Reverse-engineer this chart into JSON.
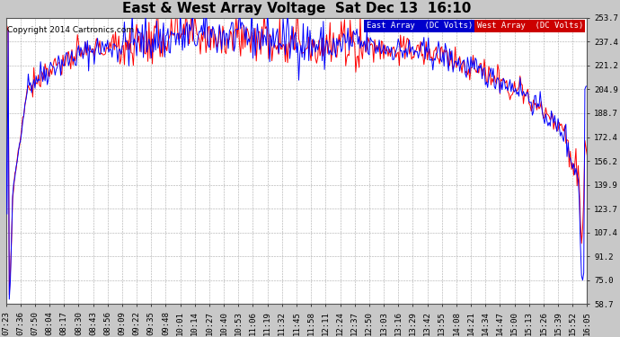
{
  "title": "East & West Array Voltage  Sat Dec 13  16:10",
  "copyright": "Copyright 2014 Cartronics.com",
  "legend_east": "East Array  (DC Volts)",
  "legend_west": "West Array  (DC Volts)",
  "east_color": "#0000ff",
  "west_color": "#ff0000",
  "legend_east_bg": "#0000cc",
  "legend_west_bg": "#cc0000",
  "bg_color": "#c8c8c8",
  "plot_bg_color": "#ffffff",
  "grid_color": "#aaaaaa",
  "ylim": [
    58.7,
    253.7
  ],
  "yticks": [
    58.7,
    75.0,
    91.2,
    107.4,
    123.7,
    139.9,
    156.2,
    172.4,
    188.7,
    204.9,
    221.2,
    237.4,
    253.7
  ],
  "xtick_labels": [
    "07:23",
    "07:36",
    "07:50",
    "08:04",
    "08:17",
    "08:30",
    "08:43",
    "08:56",
    "09:09",
    "09:22",
    "09:35",
    "09:48",
    "10:01",
    "10:14",
    "10:27",
    "10:40",
    "10:53",
    "11:06",
    "11:19",
    "11:32",
    "11:45",
    "11:58",
    "12:11",
    "12:24",
    "12:37",
    "12:50",
    "13:03",
    "13:16",
    "13:29",
    "13:42",
    "13:55",
    "14:08",
    "14:21",
    "14:34",
    "14:47",
    "15:00",
    "15:13",
    "15:26",
    "15:39",
    "15:52",
    "16:05"
  ],
  "title_fontsize": 11,
  "tick_fontsize": 6.5,
  "copyright_fontsize": 6.5,
  "linewidth": 0.7
}
